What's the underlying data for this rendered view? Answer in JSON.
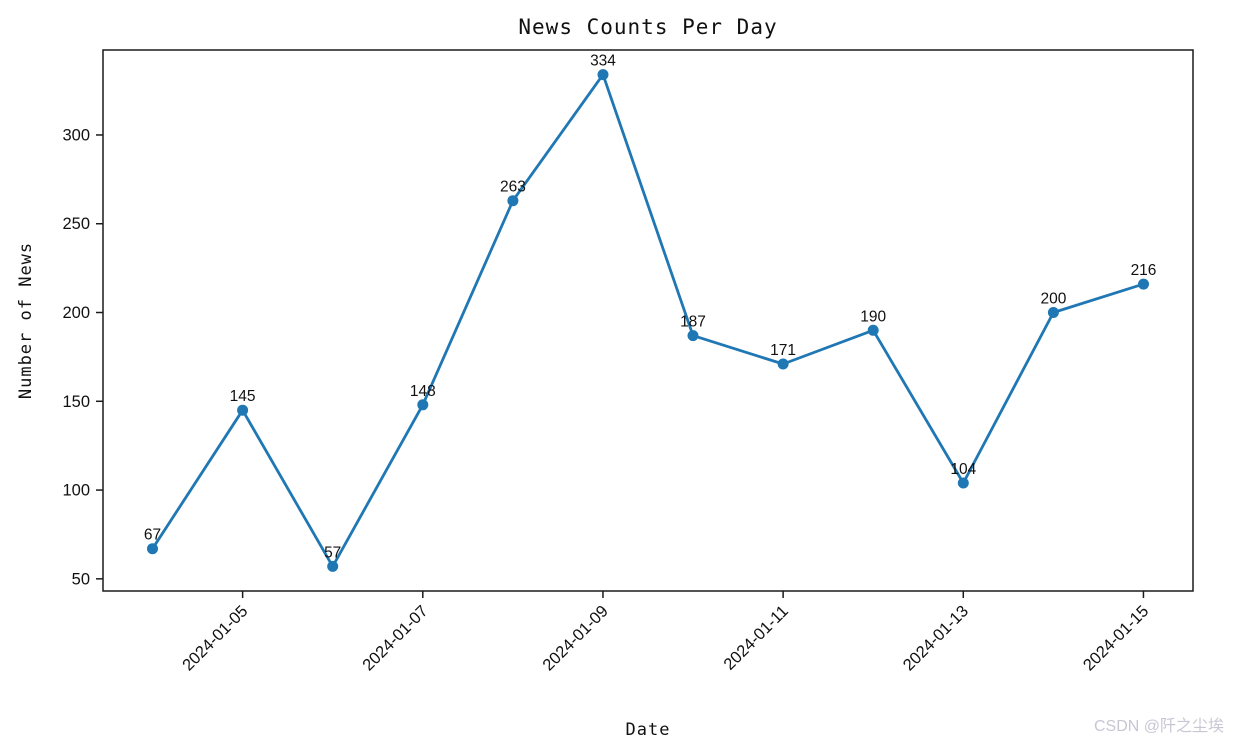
{
  "page": {
    "background": "#ffffff"
  },
  "watermark": {
    "text": "CSDN @阡之尘埃",
    "color": "#c9c6d4"
  },
  "chart_data": {
    "type": "line",
    "title": "News Counts Per Day",
    "xlabel": "Date",
    "ylabel": "Number of News",
    "x": [
      "2024-01-04",
      "2024-01-05",
      "2024-01-06",
      "2024-01-07",
      "2024-01-08",
      "2024-01-09",
      "2024-01-10",
      "2024-01-11",
      "2024-01-12",
      "2024-01-13",
      "2024-01-14",
      "2024-01-15"
    ],
    "values": [
      67,
      145,
      57,
      148,
      263,
      334,
      187,
      171,
      190,
      104,
      200,
      216
    ],
    "point_labels": [
      "67",
      "145",
      "57",
      "148",
      "263",
      "334",
      "187",
      "171",
      "190",
      "104",
      "200",
      "216"
    ],
    "x_tick_labels": [
      "2024-01-05",
      "2024-01-07",
      "2024-01-09",
      "2024-01-11",
      "2024-01-13",
      "2024-01-15"
    ],
    "x_tick_indices": [
      1,
      3,
      5,
      7,
      9,
      11
    ],
    "x_tick_rotation": 45,
    "y_ticks": [
      50,
      100,
      150,
      200,
      250,
      300
    ],
    "xlim": [
      -0.55,
      11.55
    ],
    "ylim": [
      43.15,
      347.85
    ],
    "grid": false,
    "legend": null,
    "line_color": "#1f77b4",
    "marker": "circle",
    "spine_color": "#1a1a1a",
    "text_color": "#111111"
  }
}
